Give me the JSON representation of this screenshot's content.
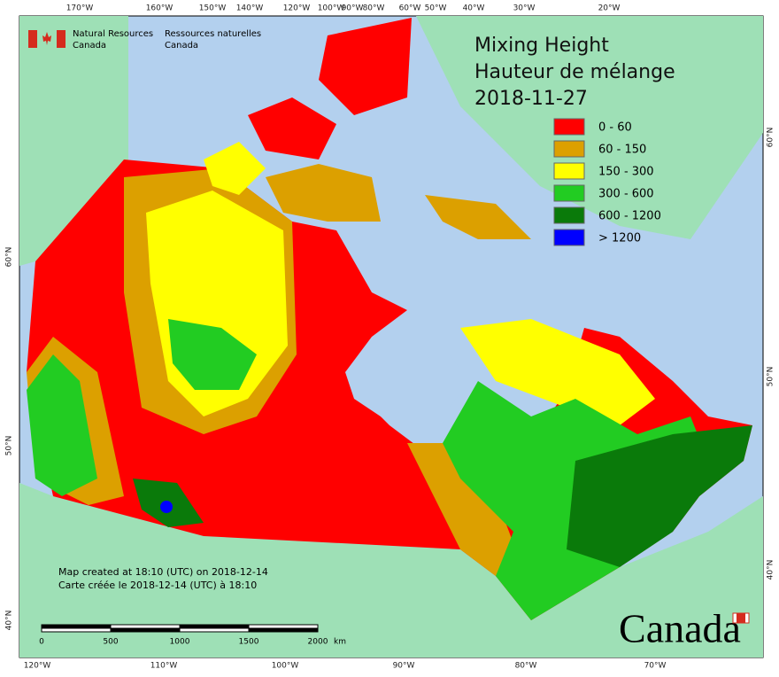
{
  "header": {
    "en_line1": "Natural Resources",
    "en_line2": "Canada",
    "fr_line1": "Ressources naturelles",
    "fr_line2": "Canada"
  },
  "title": {
    "line1": "Mixing Height",
    "line2": "Hauteur de mélange",
    "date": "2018-11-27"
  },
  "legend": {
    "items": [
      {
        "label": "0 - 60",
        "color": "#ff0000"
      },
      {
        "label": "60 - 150",
        "color": "#dca000"
      },
      {
        "label": "150 - 300",
        "color": "#ffff00"
      },
      {
        "label": "300 - 600",
        "color": "#22cc22"
      },
      {
        "label": "600 - 1200",
        "color": "#0a7a0a"
      },
      {
        "label": "> 1200",
        "color": "#0000ff"
      }
    ]
  },
  "graticule": {
    "top": [
      "170°W",
      "160°W",
      "150°W",
      "140°W",
      "120°W",
      "100°W",
      "90°W",
      "80°W",
      "60°W",
      "50°W",
      "40°W",
      "30°W",
      "20°W"
    ],
    "bottom": [
      "120°W",
      "110°W",
      "100°W",
      "90°W",
      "80°W",
      "70°W"
    ],
    "left": [
      "60°N",
      "50°N",
      "40°N"
    ],
    "right": [
      "60°N",
      "50°N",
      "40°N"
    ]
  },
  "credits": {
    "en": "Map created at 18:10 (UTC) on 2018-12-14",
    "fr": "Carte créée le 2018-12-14 (UTC) à 18:10"
  },
  "scale_bar": {
    "labels": [
      "0",
      "500",
      "1000",
      "1500",
      "2000"
    ],
    "unit": "km"
  },
  "wordmark": "Canada"
}
